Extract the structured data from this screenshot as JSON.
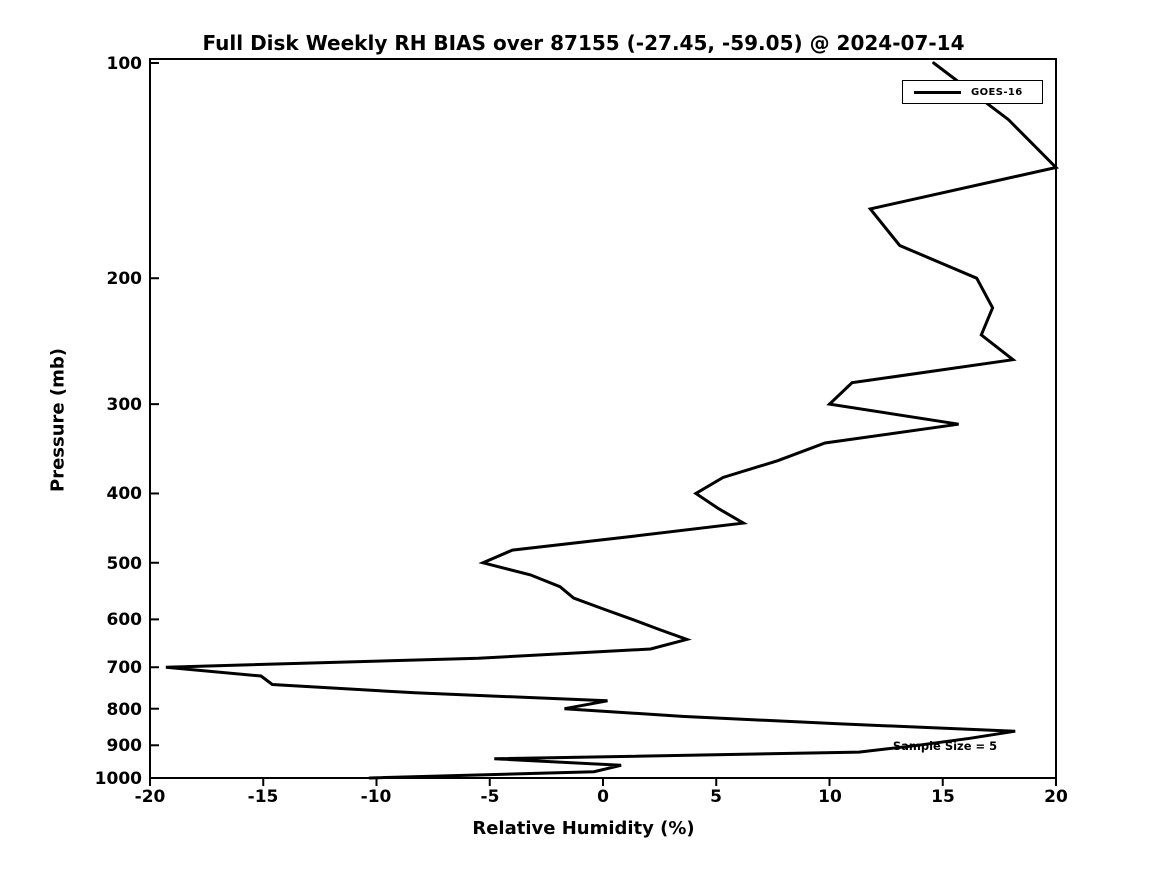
{
  "chart_data": {
    "type": "line",
    "title": "Full Disk Weekly RH BIAS over 87155 (-27.45, -59.05) @ 2024-07-14",
    "xlabel": "Relative Humidity (%)",
    "ylabel": "Pressure (mb)",
    "grid": false,
    "background_color": "#ffffff",
    "line_color": "#000000",
    "x_axis": {
      "min": -20,
      "max": 20,
      "tick_labels": [
        "-20",
        "-15",
        "-10",
        "-5",
        "0",
        "5",
        "10",
        "15",
        "20"
      ]
    },
    "y_axis": {
      "min": 100,
      "max": 1000,
      "scale": "log",
      "inverted": true,
      "tick_labels": [
        "100",
        "200",
        "300",
        "400",
        "500",
        "600",
        "700",
        "800",
        "900",
        "1000"
      ]
    },
    "legend": {
      "label": "GOES-16",
      "position": "top-right"
    },
    "annotation": {
      "text": "Sample Size = 5"
    },
    "points_format": "[pressure_mb, rh_bias_percent]",
    "series": [
      {
        "name": "GOES-16",
        "color": "#000000",
        "points": [
          [
            100,
            14.6
          ],
          [
            120,
            17.9
          ],
          [
            140,
            20.0
          ],
          [
            160,
            11.8
          ],
          [
            180,
            13.1
          ],
          [
            200,
            16.5
          ],
          [
            220,
            17.2
          ],
          [
            240,
            16.7
          ],
          [
            260,
            18.1
          ],
          [
            280,
            11.0
          ],
          [
            300,
            10.0
          ],
          [
            320,
            15.7
          ],
          [
            340,
            9.8
          ],
          [
            360,
            7.7
          ],
          [
            380,
            5.3
          ],
          [
            400,
            4.1
          ],
          [
            420,
            5.1
          ],
          [
            440,
            6.2
          ],
          [
            460,
            1.1
          ],
          [
            480,
            -4.0
          ],
          [
            500,
            -5.3
          ],
          [
            520,
            -3.2
          ],
          [
            540,
            -1.9
          ],
          [
            560,
            -1.3
          ],
          [
            580,
            0.0
          ],
          [
            600,
            1.3
          ],
          [
            620,
            2.5
          ],
          [
            640,
            3.7
          ],
          [
            660,
            2.1
          ],
          [
            680,
            -5.5
          ],
          [
            700,
            -19.3
          ],
          [
            720,
            -15.1
          ],
          [
            740,
            -14.6
          ],
          [
            760,
            -8.3
          ],
          [
            780,
            0.2
          ],
          [
            800,
            -1.7
          ],
          [
            820,
            3.5
          ],
          [
            840,
            10.5
          ],
          [
            860,
            18.2
          ],
          [
            880,
            16.2
          ],
          [
            900,
            13.9
          ],
          [
            920,
            11.3
          ],
          [
            940,
            -4.8
          ],
          [
            960,
            0.8
          ],
          [
            980,
            -0.4
          ],
          [
            1000,
            -10.3
          ]
        ]
      }
    ]
  }
}
